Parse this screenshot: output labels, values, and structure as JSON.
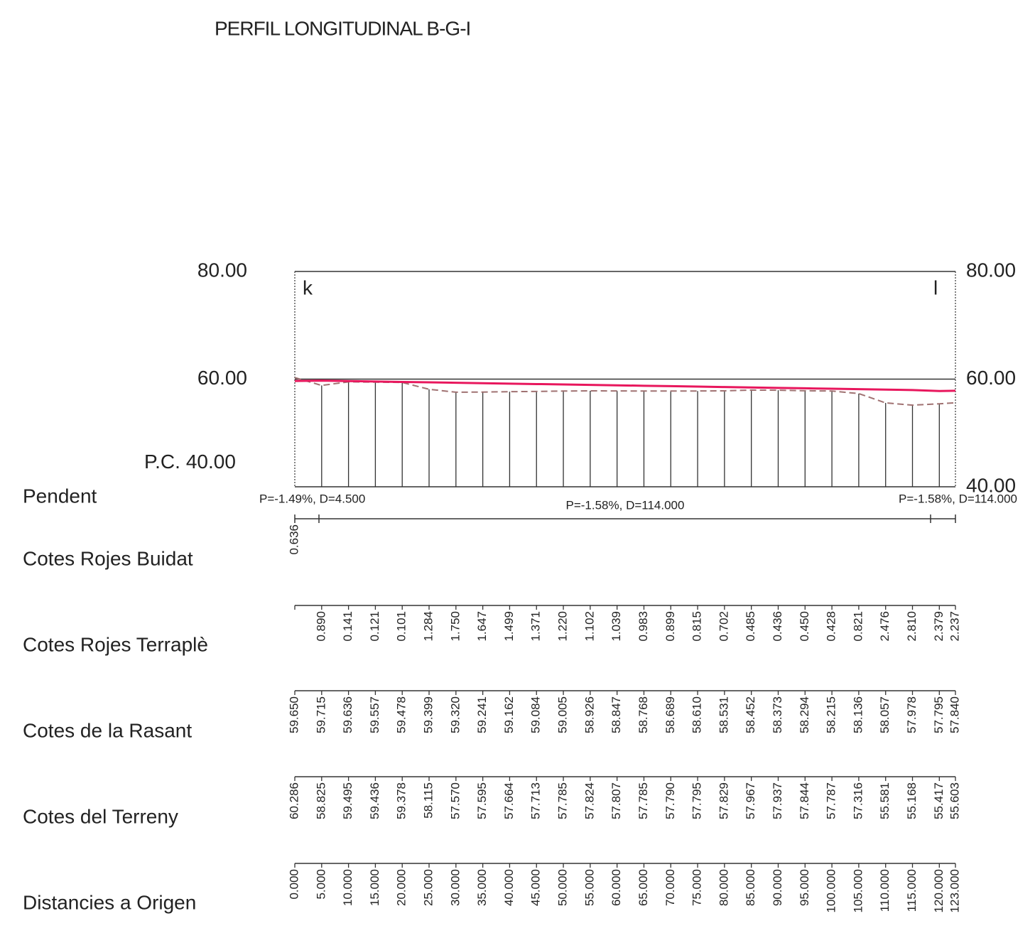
{
  "chart_data": {
    "type": "profile",
    "title": "PERFIL LONGITUDINAL B-G-I",
    "ylim": [
      40,
      80
    ],
    "yticks": [
      {
        "value": 40,
        "label": "40.00"
      },
      {
        "value": 60,
        "label": "60.00"
      },
      {
        "value": 80,
        "label": "80.00"
      }
    ],
    "datum_label": "P.C.",
    "start_label": "k",
    "end_label": "l",
    "slope_row": "Pendent",
    "slopes": [
      "P=-1.49%, D=4.500",
      "P=-1.58%, D=114.000",
      "P=-1.58%, D=114.000"
    ],
    "x_label": "Distancies a Origen",
    "x": [
      0,
      5,
      10,
      15,
      20,
      25,
      30,
      35,
      40,
      45,
      50,
      55,
      60,
      65,
      70,
      75,
      80,
      85,
      90,
      95,
      100,
      105,
      110,
      115,
      120,
      123
    ],
    "x_labels": [
      "0.000",
      "5.000",
      "10.000",
      "15.000",
      "20.000",
      "25.000",
      "30.000",
      "35.000",
      "40.000",
      "45.000",
      "50.000",
      "55.000",
      "60.000",
      "65.000",
      "70.000",
      "75.000",
      "80.000",
      "85.000",
      "90.000",
      "95.000",
      "100.000",
      "105.000",
      "110.000",
      "115.000",
      "120.000",
      "123.000"
    ],
    "series": [
      {
        "name": "Cotes Rojes Buidat",
        "values": [
          0.636,
          null,
          null,
          null,
          null,
          null,
          null,
          null,
          null,
          null,
          null,
          null,
          null,
          null,
          null,
          null,
          null,
          null,
          null,
          null,
          null,
          null,
          null,
          null,
          null,
          null
        ],
        "value_labels": [
          "0.636",
          null,
          null,
          null,
          null,
          null,
          null,
          null,
          null,
          null,
          null,
          null,
          null,
          null,
          null,
          null,
          null,
          null,
          null,
          null,
          null,
          null,
          null,
          null,
          null,
          null
        ]
      },
      {
        "name": "Cotes Rojes Terraplè",
        "values": [
          null,
          0.89,
          0.141,
          0.121,
          0.101,
          1.284,
          1.75,
          1.647,
          1.499,
          1.371,
          1.22,
          1.102,
          1.039,
          0.983,
          0.899,
          0.815,
          0.702,
          0.485,
          0.436,
          0.45,
          0.428,
          0.821,
          2.476,
          2.81,
          2.379,
          2.237
        ],
        "value_labels": [
          null,
          "0.890",
          "0.141",
          "0.121",
          "0.101",
          "1.284",
          "1.750",
          "1.647",
          "1.499",
          "1.371",
          "1.220",
          "1.102",
          "1.039",
          "0.983",
          "0.899",
          "0.815",
          "0.702",
          "0.485",
          "0.436",
          "0.450",
          "0.428",
          "0.821",
          "2.476",
          "2.810",
          "2.379",
          "2.237"
        ]
      },
      {
        "name": "Cotes de la Rasant",
        "color": "#e8175d",
        "values": [
          59.65,
          59.715,
          59.636,
          59.557,
          59.478,
          59.399,
          59.32,
          59.241,
          59.162,
          59.084,
          59.005,
          58.926,
          58.847,
          58.768,
          58.689,
          58.61,
          58.531,
          58.452,
          58.373,
          58.294,
          58.215,
          58.136,
          58.057,
          57.978,
          57.795,
          57.84
        ],
        "value_labels": [
          "59.650",
          "59.715",
          "59.636",
          "59.557",
          "59.478",
          "59.399",
          "59.320",
          "59.241",
          "59.162",
          "59.084",
          "59.005",
          "58.926",
          "58.847",
          "58.768",
          "58.689",
          "58.610",
          "58.531",
          "58.452",
          "58.373",
          "58.294",
          "58.215",
          "58.136",
          "58.057",
          "57.978",
          "57.795",
          "57.840"
        ]
      },
      {
        "name": "Cotes del Terreny",
        "color": "#a07272",
        "values": [
          60.286,
          58.825,
          59.495,
          59.436,
          59.378,
          58.115,
          57.57,
          57.595,
          57.664,
          57.713,
          57.785,
          57.824,
          57.807,
          57.785,
          57.79,
          57.795,
          57.829,
          57.967,
          57.937,
          57.844,
          57.787,
          57.316,
          55.581,
          55.168,
          55.417,
          55.603
        ],
        "value_labels": [
          "60.286",
          "58.825",
          "59.495",
          "59.436",
          "59.378",
          "58.115",
          "57.570",
          "57.595",
          "57.664",
          "57.713",
          "57.785",
          "57.824",
          "57.807",
          "57.785",
          "57.790",
          "57.795",
          "57.829",
          "57.967",
          "57.937",
          "57.844",
          "57.787",
          "57.316",
          "55.581",
          "55.168",
          "55.417",
          "55.603"
        ]
      }
    ]
  }
}
